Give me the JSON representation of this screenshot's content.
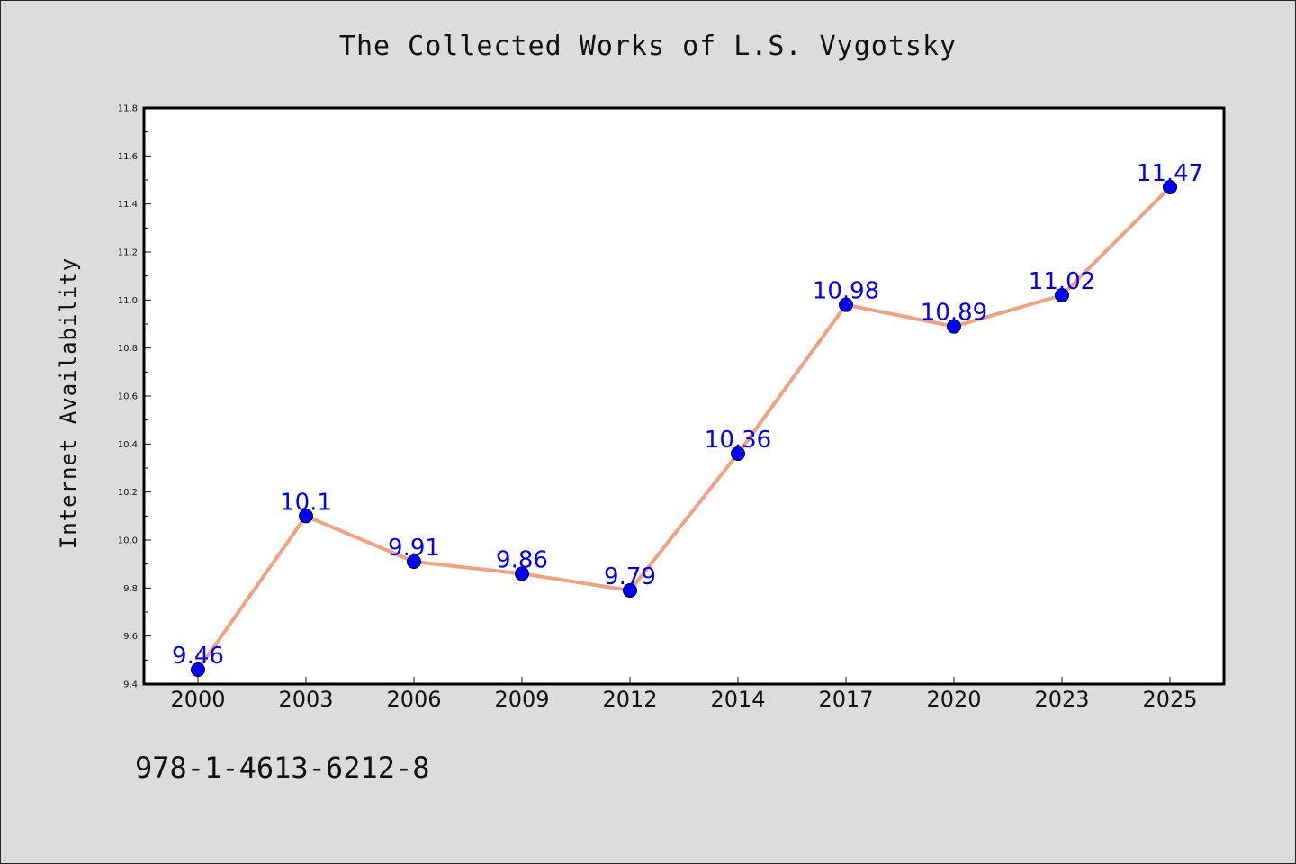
{
  "chart_data": {
    "type": "line",
    "title": "The Collected Works of L.S. Vygotsky",
    "xlabel": "",
    "ylabel": "Internet Availability",
    "categories": [
      "2000",
      "2003",
      "2006",
      "2009",
      "2012",
      "2014",
      "2017",
      "2020",
      "2023",
      "2025"
    ],
    "values": [
      9.46,
      10.1,
      9.91,
      9.86,
      9.79,
      10.36,
      10.98,
      10.89,
      11.02,
      11.47
    ],
    "data_labels": [
      "9.46",
      "10.1",
      "9.91",
      "9.86",
      "9.79",
      "10.36",
      "10.98",
      "10.89",
      "11.02",
      "11.47"
    ],
    "ylim": [
      9.4,
      11.8
    ],
    "yticks": [
      "9.4",
      "9.6",
      "9.8",
      "10.0",
      "10.2",
      "10.4",
      "10.6",
      "10.8",
      "11.0",
      "11.2",
      "11.4",
      "11.6",
      "11.8"
    ],
    "grid": false,
    "line_color": "#f4a07e",
    "marker_color": "#0000ff",
    "label_color": "#0000ff"
  },
  "footer_text": "978-1-4613-6212-8"
}
